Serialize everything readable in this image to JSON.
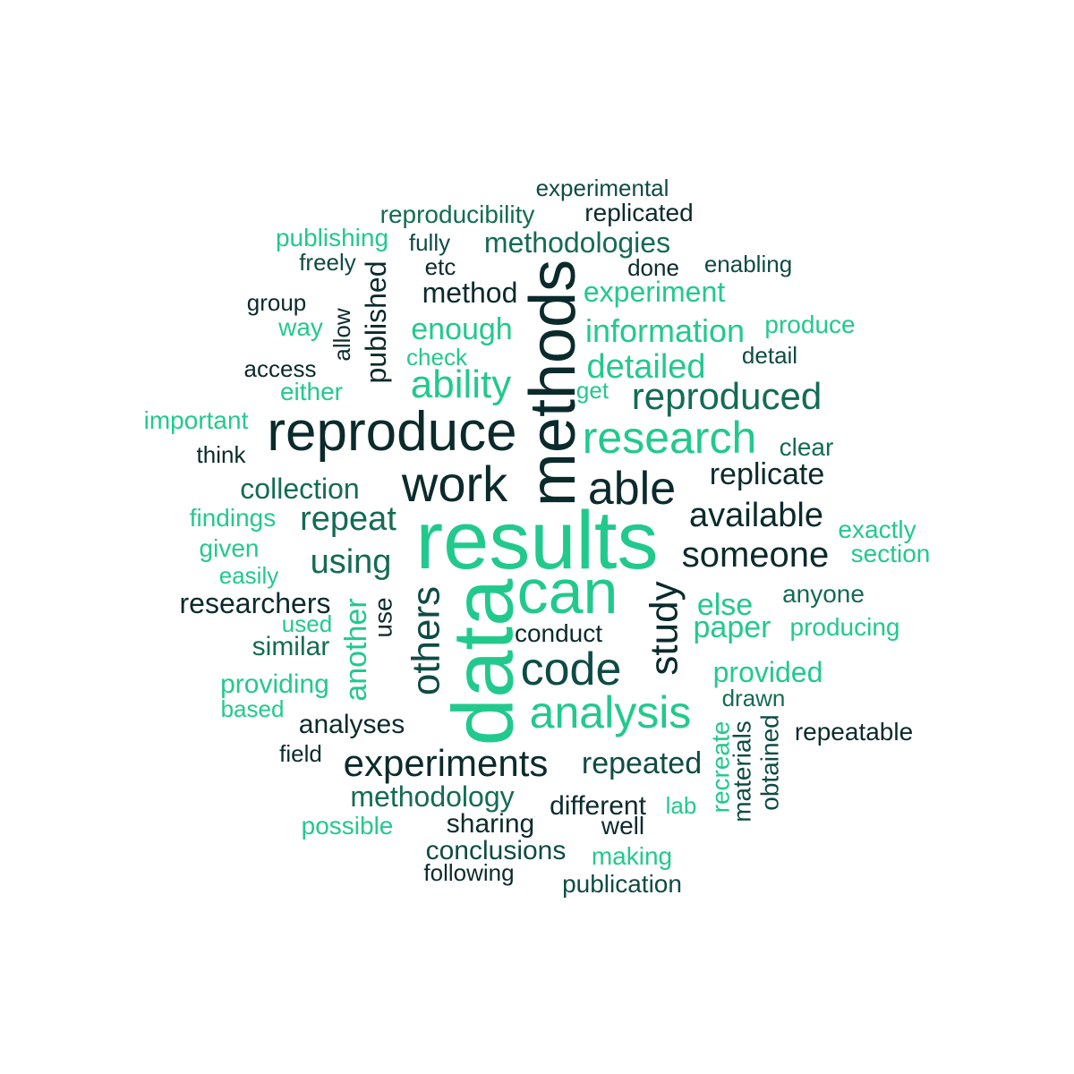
{
  "palette": {
    "dark": "#0b2a2c",
    "deep": "#0f4b45",
    "mid": "#146b55",
    "teal": "#1a9e74",
    "bright": "#22c98d"
  },
  "words": [
    {
      "text": "results",
      "color": "bright"
    },
    {
      "text": "data",
      "color": "bright"
    },
    {
      "text": "methods",
      "color": "dark"
    },
    {
      "text": "can",
      "color": "bright"
    },
    {
      "text": "reproduce",
      "color": "dark"
    },
    {
      "text": "work",
      "color": "dark"
    },
    {
      "text": "code",
      "color": "deep"
    },
    {
      "text": "analysis",
      "color": "bright"
    },
    {
      "text": "research",
      "color": "bright"
    },
    {
      "text": "able",
      "color": "dark"
    },
    {
      "text": "others",
      "color": "deep"
    },
    {
      "text": "study",
      "color": "dark"
    },
    {
      "text": "experiments",
      "color": "dark"
    },
    {
      "text": "reproduced",
      "color": "mid"
    },
    {
      "text": "ability",
      "color": "bright"
    },
    {
      "text": "someone",
      "color": "dark"
    },
    {
      "text": "available",
      "color": "dark"
    },
    {
      "text": "repeat",
      "color": "mid"
    },
    {
      "text": "using",
      "color": "mid"
    },
    {
      "text": "detailed",
      "color": "bright"
    },
    {
      "text": "repeated",
      "color": "deep"
    },
    {
      "text": "information",
      "color": "bright"
    },
    {
      "text": "enough",
      "color": "bright"
    },
    {
      "text": "replicate",
      "color": "dark"
    },
    {
      "text": "else",
      "color": "bright"
    },
    {
      "text": "paper",
      "color": "bright"
    },
    {
      "text": "another",
      "color": "bright"
    },
    {
      "text": "methodology",
      "color": "mid"
    },
    {
      "text": "researchers",
      "color": "dark"
    },
    {
      "text": "published",
      "color": "dark"
    },
    {
      "text": "collection",
      "color": "mid"
    },
    {
      "text": "provided",
      "color": "bright"
    },
    {
      "text": "methodologies",
      "color": "mid"
    },
    {
      "text": "method",
      "color": "dark"
    },
    {
      "text": "experiment",
      "color": "bright"
    },
    {
      "text": "similar",
      "color": "mid"
    },
    {
      "text": "different",
      "color": "dark"
    },
    {
      "text": "sharing",
      "color": "dark"
    },
    {
      "text": "analyses",
      "color": "dark"
    },
    {
      "text": "conclusions",
      "color": "deep"
    },
    {
      "text": "providing",
      "color": "bright"
    },
    {
      "text": "reproducibility",
      "color": "mid"
    },
    {
      "text": "replicated",
      "color": "dark"
    },
    {
      "text": "materials",
      "color": "deep"
    },
    {
      "text": "obtained",
      "color": "deep"
    },
    {
      "text": "recreate",
      "color": "bright"
    },
    {
      "text": "experimental",
      "color": "deep"
    },
    {
      "text": "publishing",
      "color": "bright"
    },
    {
      "text": "produce",
      "color": "bright"
    },
    {
      "text": "producing",
      "color": "bright"
    },
    {
      "text": "repeatable",
      "color": "dark"
    },
    {
      "text": "findings",
      "color": "bright"
    },
    {
      "text": "important",
      "color": "bright"
    },
    {
      "text": "anyone",
      "color": "mid"
    },
    {
      "text": "publication",
      "color": "deep"
    },
    {
      "text": "making",
      "color": "bright"
    },
    {
      "text": "exactly",
      "color": "bright"
    },
    {
      "text": "section",
      "color": "bright"
    },
    {
      "text": "possible",
      "color": "bright"
    },
    {
      "text": "use",
      "color": "dark"
    },
    {
      "text": "conduct",
      "color": "dark"
    },
    {
      "text": "allow",
      "color": "dark"
    },
    {
      "text": "either",
      "color": "bright"
    },
    {
      "text": "enabling",
      "color": "deep"
    },
    {
      "text": "check",
      "color": "bright"
    },
    {
      "text": "freely",
      "color": "deep"
    },
    {
      "text": "fully",
      "color": "deep"
    },
    {
      "text": "well",
      "color": "dark"
    },
    {
      "text": "following",
      "color": "dark"
    },
    {
      "text": "given",
      "color": "bright"
    },
    {
      "text": "easily",
      "color": "bright"
    },
    {
      "text": "used",
      "color": "bright"
    },
    {
      "text": "based",
      "color": "bright"
    },
    {
      "text": "way",
      "color": "bright"
    },
    {
      "text": "clear",
      "color": "mid"
    },
    {
      "text": "detail",
      "color": "deep"
    },
    {
      "text": "drawn",
      "color": "mid"
    },
    {
      "text": "access",
      "color": "dark"
    },
    {
      "text": "group",
      "color": "dark"
    },
    {
      "text": "think",
      "color": "dark"
    },
    {
      "text": "field",
      "color": "dark"
    },
    {
      "text": "etc",
      "color": "dark"
    },
    {
      "text": "done",
      "color": "dark"
    },
    {
      "text": "get",
      "color": "bright"
    },
    {
      "text": "lab",
      "color": "bright"
    }
  ]
}
